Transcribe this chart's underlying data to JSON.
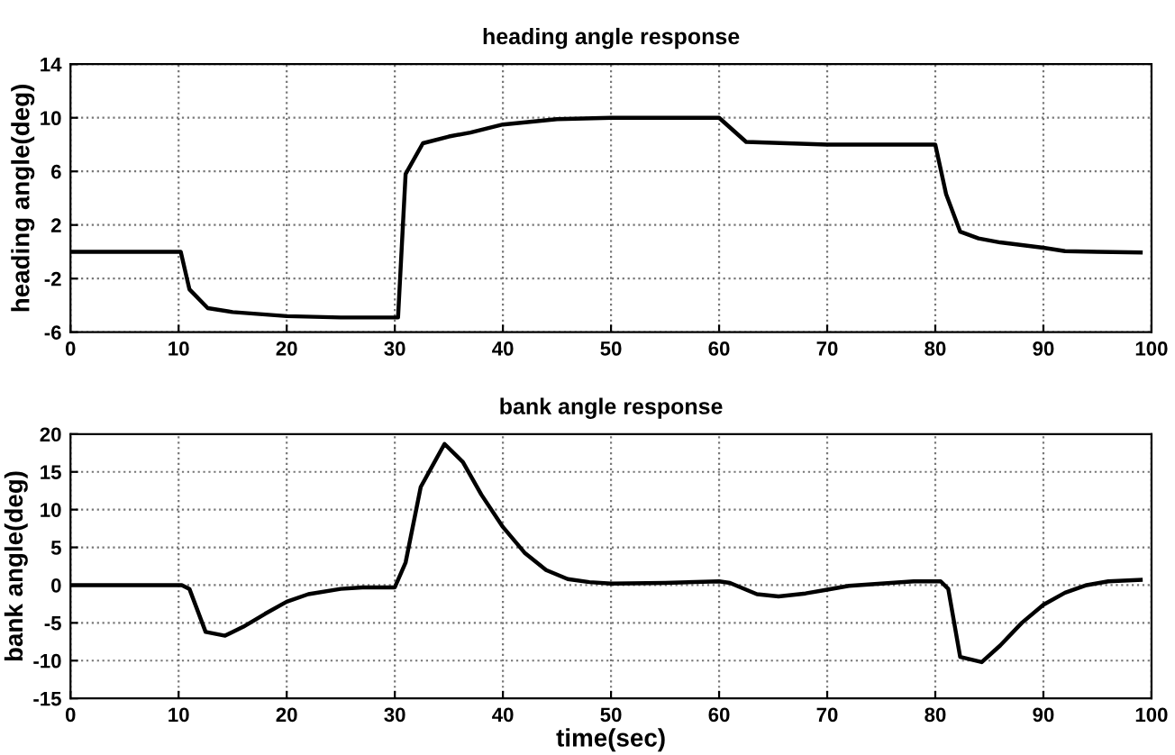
{
  "chart_data": [
    {
      "type": "line",
      "title": "heading angle response",
      "ylabel": "heading angle(deg)",
      "xlim": [
        0,
        100
      ],
      "xticks": [
        0,
        10,
        20,
        30,
        40,
        50,
        60,
        70,
        80,
        90,
        100
      ],
      "ylim": [
        -6,
        14
      ],
      "yticks": [
        -6,
        -2,
        2,
        6,
        10,
        14
      ],
      "grid": true,
      "line_style": "solid",
      "marker": "none",
      "series": [
        {
          "color": "#000000",
          "x": [
            0,
            10.2,
            11,
            12.7,
            15,
            20,
            25,
            30.3,
            31,
            32.6,
            35,
            37,
            40,
            45,
            50,
            55,
            60,
            62.5,
            70,
            80,
            81,
            82.3,
            84,
            86,
            90,
            92,
            95,
            99
          ],
          "values": [
            0,
            0,
            -2.8,
            -4.2,
            -4.5,
            -4.8,
            -4.9,
            -4.9,
            5.8,
            8.1,
            8.6,
            8.9,
            9.5,
            9.9,
            10,
            10,
            10,
            8.2,
            8,
            8,
            4.3,
            1.5,
            1,
            0.7,
            0.3,
            0.05,
            0,
            -0.05
          ]
        }
      ]
    },
    {
      "type": "line",
      "title": "bank angle response",
      "xlabel": "time(sec)",
      "ylabel": "bank angle(deg)",
      "xlim": [
        0,
        100
      ],
      "xticks": [
        0,
        10,
        20,
        30,
        40,
        50,
        60,
        70,
        80,
        90,
        100
      ],
      "ylim": [
        -15,
        20
      ],
      "yticks": [
        -15,
        -10,
        -5,
        0,
        5,
        10,
        15,
        20
      ],
      "grid": true,
      "line_style": "solid",
      "marker": "none",
      "series": [
        {
          "color": "#000000",
          "x": [
            0,
            10.3,
            11,
            12.5,
            14.3,
            16,
            18,
            20,
            22,
            25,
            27,
            30,
            31,
            32.4,
            34.6,
            36.3,
            38,
            40,
            42,
            44,
            46,
            48,
            50,
            55,
            60,
            61,
            63.5,
            65.5,
            68,
            70,
            72,
            75,
            78,
            80.5,
            81.2,
            82.3,
            84.3,
            86,
            88,
            90,
            92,
            94,
            96,
            99
          ],
          "values": [
            0,
            0,
            -0.5,
            -6.2,
            -6.7,
            -5.5,
            -3.8,
            -2.2,
            -1.2,
            -0.5,
            -0.3,
            -0.3,
            3,
            13,
            18.7,
            16.3,
            12,
            7.7,
            4.3,
            2,
            0.8,
            0.4,
            0.2,
            0.3,
            0.5,
            0.3,
            -1.2,
            -1.5,
            -1.1,
            -0.6,
            -0.1,
            0.2,
            0.5,
            0.5,
            -0.5,
            -9.5,
            -10.2,
            -8,
            -5,
            -2.6,
            -1,
            0,
            0.5,
            0.7
          ]
        }
      ]
    }
  ]
}
